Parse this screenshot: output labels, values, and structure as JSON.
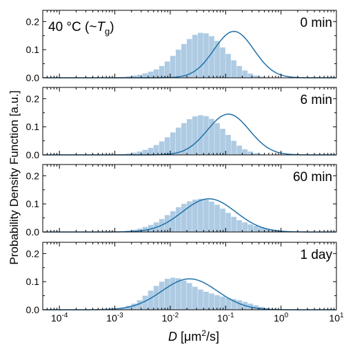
{
  "figure": {
    "ylabel": "Probability Density Function [a.u.]",
    "xlabel_var": "D",
    "xlabel_units_pre": " [μm",
    "xlabel_units_sup": "2",
    "xlabel_units_post": "/s]",
    "temp_text": "40 °C (~",
    "temp_T": "T",
    "temp_sub": "g",
    "temp_close": ")"
  },
  "colors": {
    "bars": "#aecbe3",
    "curve": "#1f6fa8",
    "axis": "#000000"
  },
  "chart_data": [
    {
      "type": "bar",
      "label": "0 min",
      "xscale": "log",
      "xlim": [
        5e-05,
        10
      ],
      "ylim": [
        0,
        0.24
      ],
      "yticks": [
        "0.0",
        "0.1",
        "0.2"
      ],
      "xticks_shown": false,
      "bins_log10_start": -3.0,
      "bin_width_log10": 0.1,
      "histogram_values": [
        0.002,
        0.003,
        0.005,
        0.008,
        0.011,
        0.016,
        0.022,
        0.03,
        0.042,
        0.058,
        0.078,
        0.1,
        0.12,
        0.138,
        0.153,
        0.16,
        0.158,
        0.148,
        0.131,
        0.108,
        0.085,
        0.062,
        0.042,
        0.026,
        0.015,
        0.008,
        0.004,
        0.002
      ],
      "fit": {
        "peak_log10": -0.85,
        "sigma_log10": 0.36,
        "amplitude": 0.165
      }
    },
    {
      "type": "bar",
      "label": "6 min",
      "xscale": "log",
      "xlim": [
        5e-05,
        10
      ],
      "ylim": [
        0,
        0.24
      ],
      "yticks": [
        "0.0",
        "0.1",
        "0.2"
      ],
      "xticks_shown": false,
      "bins_log10_start": -3.0,
      "bin_width_log10": 0.1,
      "histogram_values": [
        0.002,
        0.003,
        0.005,
        0.008,
        0.012,
        0.018,
        0.025,
        0.035,
        0.048,
        0.063,
        0.08,
        0.097,
        0.113,
        0.127,
        0.137,
        0.141,
        0.138,
        0.128,
        0.113,
        0.093,
        0.071,
        0.05,
        0.033,
        0.02,
        0.012,
        0.006,
        0.003,
        0.001
      ],
      "fit": {
        "peak_log10": -0.95,
        "sigma_log10": 0.38,
        "amplitude": 0.145
      }
    },
    {
      "type": "bar",
      "label": "60 min",
      "xscale": "log",
      "xlim": [
        5e-05,
        10
      ],
      "ylim": [
        0,
        0.24
      ],
      "yticks": [
        "0.0",
        "0.1",
        "0.2"
      ],
      "xticks_shown": false,
      "bins_log10_start": -3.0,
      "bin_width_log10": 0.1,
      "histogram_values": [
        0.002,
        0.003,
        0.005,
        0.008,
        0.012,
        0.018,
        0.025,
        0.034,
        0.046,
        0.06,
        0.074,
        0.088,
        0.1,
        0.109,
        0.115,
        0.118,
        0.115,
        0.108,
        0.097,
        0.083,
        0.068,
        0.054,
        0.042,
        0.034,
        0.027,
        0.022,
        0.017,
        0.012,
        0.008,
        0.005,
        0.003,
        0.002
      ],
      "fit": {
        "peak_log10": -1.3,
        "sigma_log10": 0.48,
        "amplitude": 0.118
      }
    },
    {
      "type": "bar",
      "label": "1 day",
      "xscale": "log",
      "xlim": [
        5e-05,
        10
      ],
      "ylim": [
        0,
        0.24
      ],
      "yticks": [
        "0.0",
        "0.1",
        "0.2"
      ],
      "xticks": [
        "10^-4",
        "10^-3",
        "10^-2",
        "10^-1",
        "10^0",
        "10^1"
      ],
      "bins_log10_start": -3.0,
      "bin_width_log10": 0.1,
      "histogram_values": [
        0.004,
        0.008,
        0.014,
        0.022,
        0.034,
        0.05,
        0.068,
        0.085,
        0.1,
        0.11,
        0.114,
        0.112,
        0.104,
        0.095,
        0.082,
        0.072,
        0.064,
        0.058,
        0.052,
        0.047,
        0.042,
        0.038,
        0.034,
        0.028,
        0.022,
        0.016,
        0.01,
        0.006,
        0.003,
        0.002
      ],
      "fit": {
        "peak_log10": -1.65,
        "sigma_log10": 0.5,
        "amplitude": 0.11
      }
    }
  ]
}
